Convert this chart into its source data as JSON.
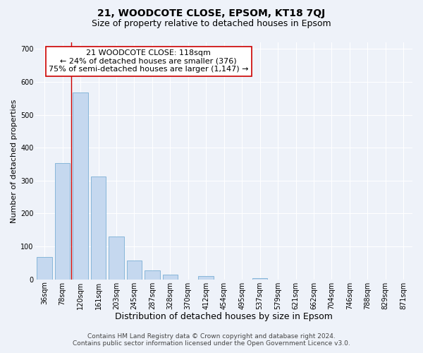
{
  "title": "21, WOODCOTE CLOSE, EPSOM, KT18 7QJ",
  "subtitle": "Size of property relative to detached houses in Epsom",
  "xlabel": "Distribution of detached houses by size in Epsom",
  "ylabel": "Number of detached properties",
  "bar_labels": [
    "36sqm",
    "78sqm",
    "120sqm",
    "161sqm",
    "203sqm",
    "245sqm",
    "287sqm",
    "328sqm",
    "370sqm",
    "412sqm",
    "454sqm",
    "495sqm",
    "537sqm",
    "579sqm",
    "621sqm",
    "662sqm",
    "704sqm",
    "746sqm",
    "788sqm",
    "829sqm",
    "871sqm"
  ],
  "bar_values": [
    68,
    353,
    568,
    312,
    130,
    58,
    27,
    14,
    0,
    10,
    0,
    0,
    3,
    0,
    0,
    0,
    0,
    0,
    0,
    0,
    0
  ],
  "bar_color": "#c5d8ef",
  "bar_edge_color": "#7aafd4",
  "property_line_index": 2,
  "property_line_color": "#cc0000",
  "ylim": [
    0,
    720
  ],
  "yticks": [
    0,
    100,
    200,
    300,
    400,
    500,
    600,
    700
  ],
  "annotation_title": "21 WOODCOTE CLOSE: 118sqm",
  "annotation_line1": "← 24% of detached houses are smaller (376)",
  "annotation_line2": "75% of semi-detached houses are larger (1,147) →",
  "annotation_box_color": "#ffffff",
  "annotation_box_edge": "#cc0000",
  "footer_line1": "Contains HM Land Registry data © Crown copyright and database right 2024.",
  "footer_line2": "Contains public sector information licensed under the Open Government Licence v3.0.",
  "background_color": "#eef2f9",
  "grid_color": "#ffffff",
  "title_fontsize": 10,
  "subtitle_fontsize": 9,
  "xlabel_fontsize": 9,
  "ylabel_fontsize": 8,
  "tick_fontsize": 7,
  "annotation_fontsize": 8,
  "footer_fontsize": 6.5
}
